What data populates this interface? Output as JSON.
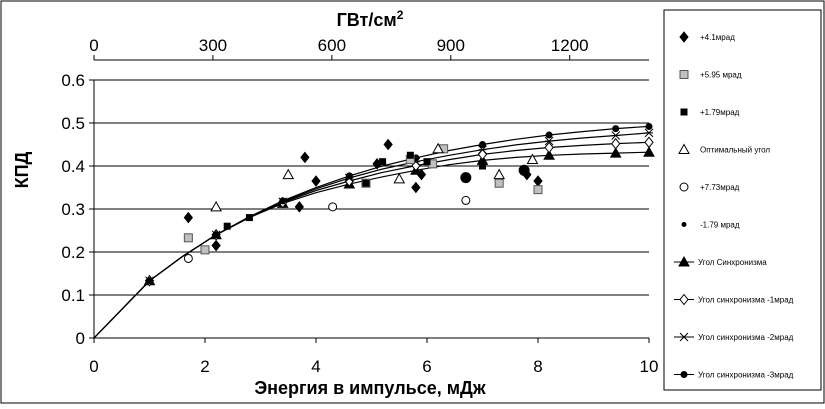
{
  "chart_data": {
    "type": "scatter",
    "xlabel": "Энергия в импульсе, мДж",
    "ylabel": "КПД",
    "x2label_base": "ГВт/см",
    "x2label_sup": "2",
    "xlim": [
      0,
      10
    ],
    "ylim": [
      0,
      0.6
    ],
    "xticks": [
      "0",
      "2",
      "4",
      "6",
      "8",
      "10"
    ],
    "yticks": [
      "0",
      "0.1",
      "0.2",
      "0.3",
      "0.4",
      "0.5",
      "0.6"
    ],
    "x2lim": [
      0,
      1400
    ],
    "x2ticks": [
      "0",
      "300",
      "600",
      "900",
      "1200"
    ],
    "grid": "horizontal",
    "legend_position": "right",
    "series": [
      {
        "name": "+4.1мрад",
        "marker": "diamond",
        "fill": "#000000",
        "stroke": "#000000",
        "points": [
          [
            1.7,
            0.28
          ],
          [
            2.2,
            0.215
          ],
          [
            3.7,
            0.305
          ],
          [
            3.8,
            0.42
          ],
          [
            4.0,
            0.365
          ],
          [
            5.1,
            0.405
          ],
          [
            5.3,
            0.45
          ],
          [
            5.8,
            0.35
          ],
          [
            5.9,
            0.38
          ],
          [
            7.8,
            0.38
          ],
          [
            8.0,
            0.365
          ]
        ]
      },
      {
        "name": "+5.95 мрад",
        "marker": "square",
        "fill": "#c0c0c0",
        "stroke": "#555555",
        "points": [
          [
            1.7,
            0.233
          ],
          [
            2.0,
            0.205
          ],
          [
            4.9,
            0.36
          ],
          [
            5.7,
            0.415
          ],
          [
            6.1,
            0.405
          ],
          [
            6.3,
            0.44
          ],
          [
            7.3,
            0.36
          ],
          [
            8.0,
            0.345
          ]
        ]
      },
      {
        "name": "+1.79мрад",
        "marker": "square-small",
        "fill": "#000000",
        "stroke": "#000000",
        "points": [
          [
            2.4,
            0.26
          ],
          [
            2.8,
            0.28
          ],
          [
            4.9,
            0.36
          ],
          [
            5.2,
            0.41
          ],
          [
            5.7,
            0.425
          ],
          [
            6.0,
            0.41
          ],
          [
            7.0,
            0.4
          ]
        ]
      },
      {
        "name": "Оптимальный угол",
        "marker": "triangle-open",
        "fill": "#ffffff",
        "stroke": "#000000",
        "points": [
          [
            2.2,
            0.305
          ],
          [
            3.5,
            0.38
          ],
          [
            5.5,
            0.37
          ],
          [
            6.2,
            0.44
          ],
          [
            7.3,
            0.38
          ],
          [
            7.9,
            0.415
          ]
        ]
      },
      {
        "name": "+7.73мрад",
        "marker": "circle-open",
        "fill": "#ffffff",
        "stroke": "#000000",
        "points": [
          [
            1.7,
            0.185
          ],
          [
            4.3,
            0.305
          ],
          [
            6.7,
            0.32
          ]
        ]
      },
      {
        "name": "-1.79 мрад",
        "marker": "circle-filled",
        "fill": "#000000",
        "stroke": "#000000",
        "points": [
          [
            6.7,
            0.373
          ],
          [
            7.75,
            0.39
          ]
        ]
      }
    ],
    "curves": [
      {
        "name": "Угол Синхронизма",
        "marker": "triangle-filled",
        "points": [
          [
            0,
            0
          ],
          [
            1,
            0.133
          ],
          [
            1.6,
            0.19
          ],
          [
            2.2,
            0.24
          ],
          [
            2.8,
            0.28
          ],
          [
            3.4,
            0.313
          ],
          [
            4.0,
            0.338
          ],
          [
            4.6,
            0.358
          ],
          [
            5.2,
            0.375
          ],
          [
            5.8,
            0.39
          ],
          [
            6.4,
            0.403
          ],
          [
            7.0,
            0.413
          ],
          [
            7.6,
            0.42
          ],
          [
            8.2,
            0.425
          ],
          [
            8.8,
            0.428
          ],
          [
            9.4,
            0.43
          ],
          [
            10,
            0.432
          ]
        ]
      },
      {
        "name": "Угол синхронизма -1мрад",
        "marker": "diamond-open",
        "points": [
          [
            0,
            0
          ],
          [
            1,
            0.133
          ],
          [
            1.6,
            0.19
          ],
          [
            2.2,
            0.24
          ],
          [
            2.8,
            0.28
          ],
          [
            3.4,
            0.315
          ],
          [
            4.0,
            0.343
          ],
          [
            4.6,
            0.365
          ],
          [
            5.2,
            0.385
          ],
          [
            5.8,
            0.401
          ],
          [
            6.4,
            0.415
          ],
          [
            7.0,
            0.427
          ],
          [
            7.6,
            0.436
          ],
          [
            8.2,
            0.443
          ],
          [
            8.8,
            0.448
          ],
          [
            9.4,
            0.452
          ],
          [
            10,
            0.455
          ]
        ]
      },
      {
        "name": "Угол синхронизма -2мрад",
        "marker": "asterisk",
        "points": [
          [
            0,
            0
          ],
          [
            1,
            0.133
          ],
          [
            1.6,
            0.19
          ],
          [
            2.2,
            0.24
          ],
          [
            2.8,
            0.281
          ],
          [
            3.4,
            0.317
          ],
          [
            4.0,
            0.347
          ],
          [
            4.6,
            0.372
          ],
          [
            5.2,
            0.393
          ],
          [
            5.8,
            0.41
          ],
          [
            6.4,
            0.425
          ],
          [
            7.0,
            0.438
          ],
          [
            7.6,
            0.449
          ],
          [
            8.2,
            0.458
          ],
          [
            8.8,
            0.465
          ],
          [
            9.4,
            0.471
          ],
          [
            10,
            0.477
          ]
        ]
      },
      {
        "name": "Угол синхронизма -3мрад",
        "marker": "circle-filled",
        "points": [
          [
            0,
            0
          ],
          [
            1,
            0.133
          ],
          [
            1.6,
            0.19
          ],
          [
            2.2,
            0.24
          ],
          [
            2.8,
            0.282
          ],
          [
            3.4,
            0.319
          ],
          [
            4.0,
            0.35
          ],
          [
            4.6,
            0.377
          ],
          [
            5.2,
            0.4
          ],
          [
            5.8,
            0.419
          ],
          [
            6.4,
            0.436
          ],
          [
            7.0,
            0.45
          ],
          [
            7.6,
            0.462
          ],
          [
            8.2,
            0.472
          ],
          [
            8.8,
            0.48
          ],
          [
            9.4,
            0.487
          ],
          [
            10,
            0.492
          ]
        ]
      }
    ]
  }
}
